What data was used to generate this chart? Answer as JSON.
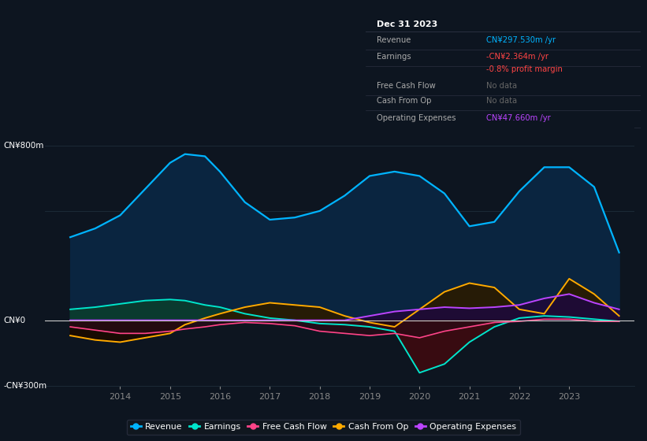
{
  "background_color": "#0d1520",
  "plot_bg_color": "#0d1520",
  "title_box_bg": "#080c10",
  "ylim": [
    -300,
    900
  ],
  "xlim": [
    2012.5,
    2024.3
  ],
  "years": [
    2013,
    2013.5,
    2014,
    2014.5,
    2015,
    2015.3,
    2015.7,
    2016,
    2016.5,
    2017,
    2017.5,
    2018,
    2018.5,
    2019,
    2019.5,
    2020,
    2020.5,
    2021,
    2021.5,
    2022,
    2022.5,
    2023,
    2023.5,
    2024.0
  ],
  "revenue": [
    380,
    420,
    480,
    600,
    720,
    760,
    750,
    680,
    540,
    460,
    470,
    500,
    570,
    660,
    680,
    660,
    580,
    430,
    450,
    590,
    700,
    700,
    610,
    310
  ],
  "earnings": [
    50,
    60,
    75,
    90,
    95,
    90,
    70,
    60,
    30,
    10,
    0,
    -15,
    -20,
    -30,
    -50,
    -240,
    -200,
    -100,
    -30,
    10,
    20,
    15,
    5,
    -5
  ],
  "free_cash": [
    -30,
    -45,
    -60,
    -60,
    -50,
    -40,
    -30,
    -20,
    -10,
    -15,
    -25,
    -50,
    -60,
    -70,
    -60,
    -80,
    -50,
    -30,
    -10,
    -5,
    5,
    5,
    -5,
    -5
  ],
  "cash_op": [
    -70,
    -90,
    -100,
    -80,
    -60,
    -20,
    10,
    30,
    60,
    80,
    70,
    60,
    20,
    -10,
    -30,
    50,
    130,
    170,
    150,
    50,
    30,
    190,
    120,
    20
  ],
  "op_exp": [
    0,
    0,
    0,
    0,
    0,
    0,
    0,
    0,
    0,
    0,
    0,
    0,
    0,
    20,
    40,
    50,
    60,
    55,
    60,
    70,
    100,
    120,
    80,
    50
  ],
  "revenue_line_color": "#00b4ff",
  "earnings_line_color": "#00e5cc",
  "free_cash_line_color": "#ff4488",
  "cash_op_line_color": "#ffaa00",
  "op_exp_line_color": "#bb44ff",
  "revenue_fill_color": "#0a2540",
  "earnings_fill_pos_color": "#0a3d2e",
  "earnings_fill_neg_color": "#3d0a10",
  "free_cash_fill_neg_color": "#2a0a15",
  "cash_op_fill_pos_color": "#2a1a00",
  "cash_op_fill_neg_color": "#1a0a00",
  "op_exp_fill_pos_color": "#1e0a3a",
  "zero_line_color": "#cccccc",
  "grid_line_color": "#1e2d3a",
  "text_color": "#aaaaaa",
  "tick_label_color": "#888888",
  "ylabel_top": "CN¥800m",
  "ylabel_zero": "CN¥0",
  "ylabel_bot": "-CN¥300m",
  "xtick_years": [
    2014,
    2015,
    2016,
    2017,
    2018,
    2019,
    2020,
    2021,
    2022,
    2023
  ],
  "title_box": {
    "date": "Dec 31 2023",
    "rows": [
      {
        "label": "Revenue",
        "value": "CN¥297.530m /yr",
        "value_color": "#00b4ff"
      },
      {
        "label": "Earnings",
        "value": "-CN¥2.364m /yr",
        "value_color": "#ff4444"
      },
      {
        "label": "",
        "value": "-0.8% profit margin",
        "value_color": "#ff4444"
      },
      {
        "label": "Free Cash Flow",
        "value": "No data",
        "value_color": "#666666"
      },
      {
        "label": "Cash From Op",
        "value": "No data",
        "value_color": "#666666"
      },
      {
        "label": "Operating Expenses",
        "value": "CN¥47.660m /yr",
        "value_color": "#bb44ff"
      }
    ]
  },
  "legend_items": [
    {
      "label": "Revenue",
      "color": "#00b4ff"
    },
    {
      "label": "Earnings",
      "color": "#00e5cc"
    },
    {
      "label": "Free Cash Flow",
      "color": "#ff4488"
    },
    {
      "label": "Cash From Op",
      "color": "#ffaa00"
    },
    {
      "label": "Operating Expenses",
      "color": "#bb44ff"
    }
  ]
}
